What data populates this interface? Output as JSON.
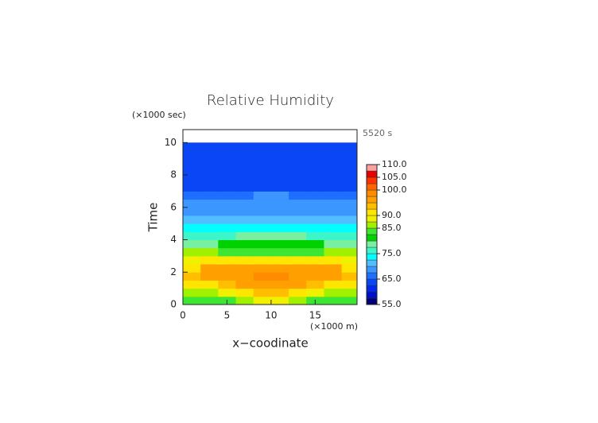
{
  "chart_data": {
    "type": "contour",
    "title": "Relative Humidity",
    "y_unit": "(×1000 sec)",
    "x_unit": "(×1000 m)",
    "time_label": "5520 s",
    "xlabel": "x−coodinate",
    "ylabel": "Time",
    "xlim": [
      0,
      19.75
    ],
    "ylim": [
      0,
      10.8
    ],
    "xticks": [
      0,
      5,
      10,
      15
    ],
    "yticks": [
      0,
      2,
      4,
      6,
      8,
      10
    ],
    "x": [
      1,
      3,
      5,
      7,
      9,
      11,
      13,
      15,
      17,
      19
    ],
    "y": [
      0.25,
      0.75,
      1.25,
      1.75,
      2.25,
      2.75,
      3.25,
      3.75,
      4.25,
      4.75,
      5.25,
      5.75,
      6.25,
      6.75,
      7.25,
      7.75,
      8.25,
      8.75,
      9.25,
      9.75
    ],
    "z": [
      [
        83,
        84,
        84,
        86,
        89,
        89,
        86,
        84,
        84,
        83
      ],
      [
        86,
        87,
        88,
        90,
        94,
        94,
        90,
        88,
        87,
        86
      ],
      [
        91,
        92,
        94,
        95,
        96,
        96,
        95,
        94,
        92,
        91
      ],
      [
        93,
        95,
        96,
        97,
        98.5,
        98.5,
        97,
        96,
        95,
        93
      ],
      [
        91,
        96,
        96,
        97,
        97,
        97,
        97,
        96,
        96,
        91
      ],
      [
        89,
        90,
        90,
        91,
        92,
        92,
        91,
        90,
        90,
        89
      ],
      [
        85,
        85,
        84,
        83,
        83,
        83,
        83,
        84,
        85,
        85
      ],
      [
        79,
        79,
        80,
        81,
        81,
        81,
        81,
        80,
        79,
        79
      ],
      [
        77,
        77,
        77,
        78,
        78,
        78,
        78,
        77,
        77,
        77
      ],
      [
        73,
        73,
        73,
        74,
        74,
        74,
        74,
        73,
        73,
        73
      ],
      [
        70,
        70,
        70,
        70,
        71,
        71,
        70,
        70,
        70,
        70
      ],
      [
        69,
        69,
        69,
        69,
        69,
        69,
        69,
        69,
        69,
        69
      ],
      [
        68,
        68,
        68,
        68,
        68,
        68,
        68,
        68,
        68,
        68
      ],
      [
        65,
        66,
        66,
        67,
        68,
        68,
        67,
        66,
        66,
        65
      ],
      [
        63,
        63,
        63,
        63,
        63,
        63,
        63,
        63,
        63,
        63
      ],
      [
        63,
        63,
        63,
        63,
        63,
        63,
        63,
        63,
        63,
        63
      ],
      [
        63,
        63,
        63,
        63,
        63,
        63,
        63,
        63,
        63,
        63
      ],
      [
        63,
        63,
        63,
        63,
        63,
        63,
        63,
        63,
        63,
        63
      ],
      [
        63,
        63,
        63,
        63,
        63,
        63,
        63,
        63,
        63,
        63
      ],
      [
        63,
        63,
        63,
        63,
        63,
        63,
        63,
        63,
        63,
        63
      ]
    ],
    "colorbar": {
      "levels": [
        55,
        57.5,
        60,
        62.5,
        65,
        67.5,
        70,
        72.5,
        75,
        77.5,
        80,
        82.5,
        85,
        87.5,
        90,
        92.5,
        95,
        97.5,
        100,
        102.5,
        105,
        107.5,
        110
      ],
      "colors": [
        "#00007a",
        "#0010c8",
        "#0028f0",
        "#0a46f5",
        "#1e6eff",
        "#3c96ff",
        "#50beff",
        "#00ffff",
        "#3cf5c8",
        "#78f0a0",
        "#00d200",
        "#3ce632",
        "#a0f000",
        "#f0f000",
        "#ffe600",
        "#ffbe00",
        "#ffa000",
        "#ff8c00",
        "#ff6400",
        "#ff3200",
        "#e60000",
        "#ffa0a0"
      ],
      "ticks": [
        {
          "value": 55,
          "label": "55.0"
        },
        {
          "value": 65,
          "label": "65.0"
        },
        {
          "value": 75,
          "label": "75.0"
        },
        {
          "value": 85,
          "label": "85.0"
        },
        {
          "value": 90,
          "label": "90.0"
        },
        {
          "value": 100,
          "label": "100.0"
        },
        {
          "value": 105,
          "label": "105.0"
        },
        {
          "value": 110,
          "label": "110.0"
        }
      ]
    }
  }
}
